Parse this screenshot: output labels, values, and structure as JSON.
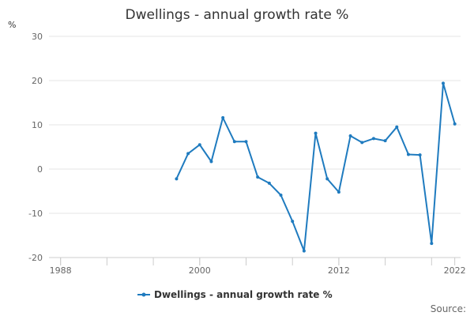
{
  "chart_data": {
    "type": "line",
    "title": "Dwellings - annual growth rate %",
    "ylabel": "%",
    "xlim": [
      1987,
      2022.5
    ],
    "ylim": [
      -20,
      30
    ],
    "xticks": [
      1988,
      2000,
      2012,
      2022
    ],
    "yticks": [
      30,
      20,
      10,
      0,
      -10,
      -20
    ],
    "grid": "horizontal",
    "legend_position": "bottom",
    "series": [
      {
        "name": "Dwellings - annual growth rate %",
        "color": "#1f7bbf",
        "x": [
          1998,
          1999,
          2000,
          2001,
          2002,
          2003,
          2004,
          2005,
          2006,
          2007,
          2008,
          2009,
          2010,
          2011,
          2012,
          2013,
          2014,
          2015,
          2016,
          2017,
          2018,
          2019,
          2020,
          2021,
          2022
        ],
        "y": [
          -2.2,
          3.5,
          5.5,
          1.7,
          11.6,
          6.2,
          6.2,
          -1.8,
          -3.2,
          -5.9,
          -11.8,
          -18.5,
          8.1,
          -2.2,
          -5.2,
          7.5,
          6.0,
          6.9,
          6.4,
          9.5,
          3.3,
          3.2,
          -16.8,
          19.4,
          10.2
        ]
      }
    ]
  },
  "source_label": "Source:"
}
